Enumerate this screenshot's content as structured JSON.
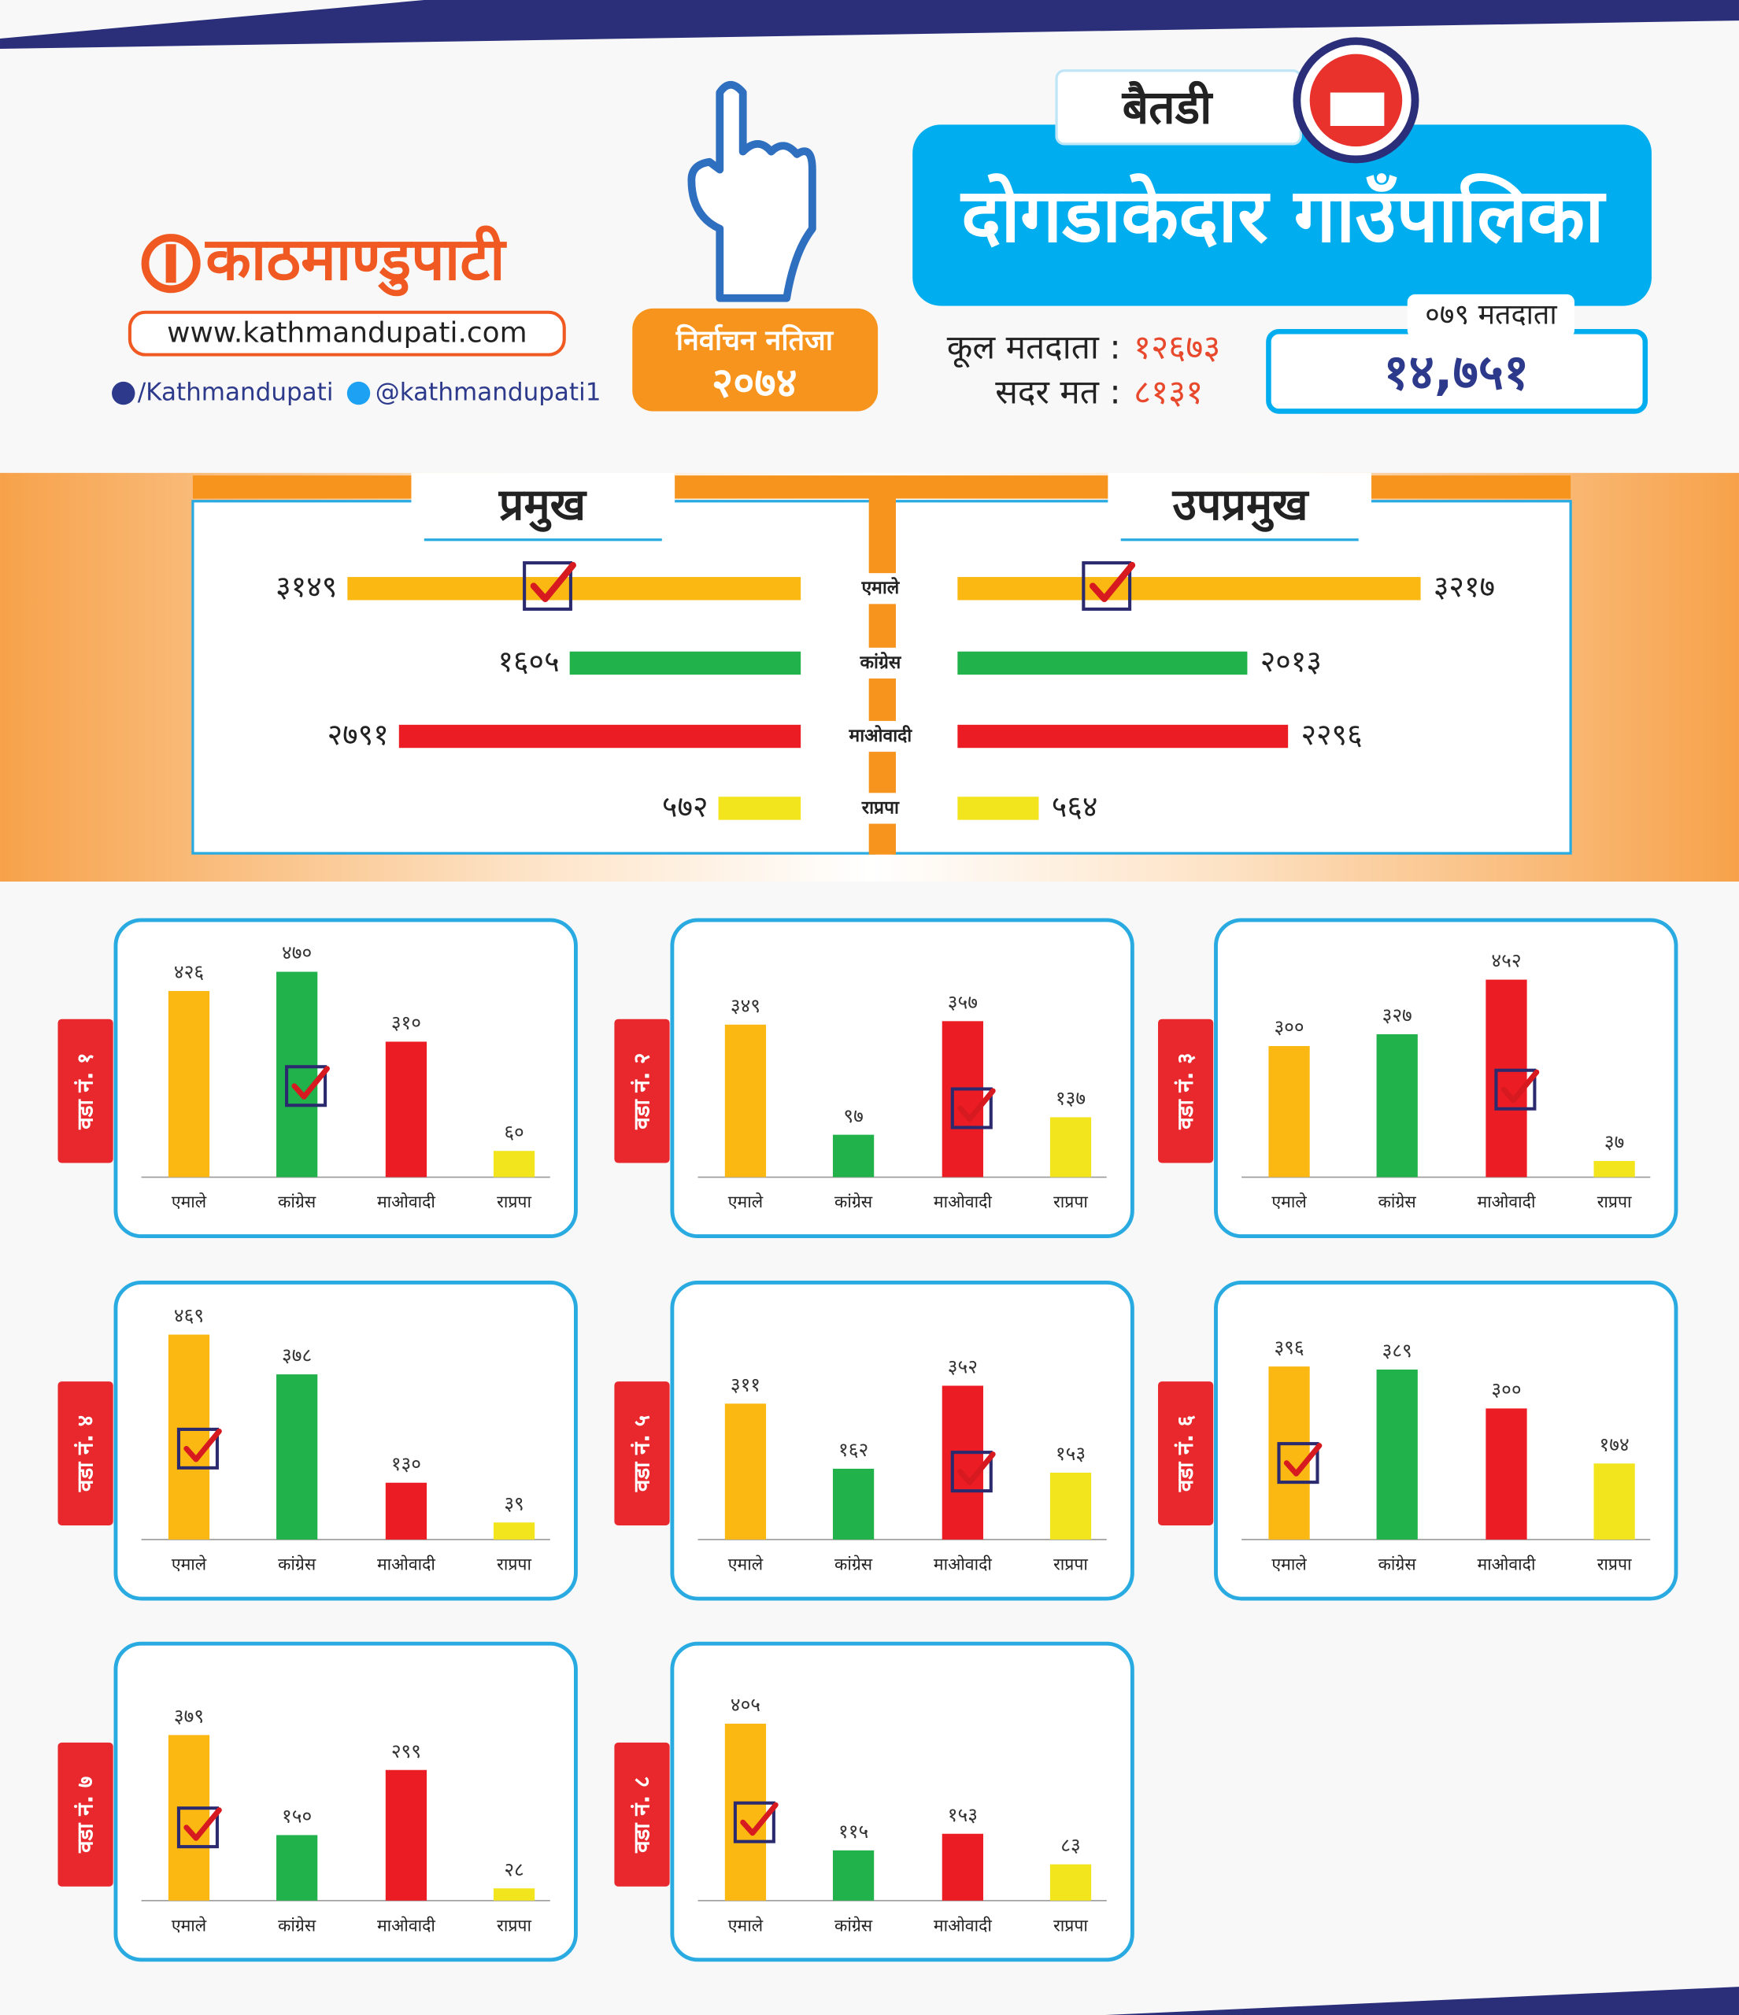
{
  "header": {
    "logo": "काठमाण्डुपाटी",
    "website": "www.kathmandupati.com",
    "facebook": "/Kathmandupati",
    "twitter": "@kathmandupati1",
    "badge_title": "निर्वाचन नतिजा",
    "badge_year": "२०७४",
    "district": "बैतडी",
    "municipality": "दोगडाकेदार गाउँपालिका",
    "stats": [
      {
        "label": "कूल मतदाता :",
        "value": "१२६७३"
      },
      {
        "label": "सदर मत :",
        "value": "८१३१"
      }
    ],
    "voters_label": "०७९ मतदाता",
    "voters": "१४,७५१"
  },
  "chart_data": [
    {
      "type": "barh",
      "categories": [
        "एमाले",
        "कांग्रेस",
        "माओवादी",
        "राप्रपा"
      ],
      "colors": [
        "#fbb813",
        "#21b24b",
        "#ec1c24",
        "#f2e41d"
      ],
      "series": [
        {
          "name": "प्रमुख",
          "values": [
            3149,
            1605,
            2791,
            572
          ],
          "value_labels": [
            "३१४९",
            "१६०५",
            "२७९१",
            "५७२"
          ],
          "check": 0
        },
        {
          "name": "उपप्रमुख",
          "values": [
            3217,
            2013,
            2296,
            564
          ],
          "value_labels": [
            "३२१७",
            "२०१३",
            "२२९६",
            "५६४"
          ],
          "check": 0
        }
      ]
    },
    {
      "type": "bar",
      "title": "वडा नं. १",
      "categories": [
        "एमाले",
        "कांग्रेस",
        "माओवादी",
        "राप्रपा"
      ],
      "colors": [
        "#fbb813",
        "#21b24b",
        "#ec1c24",
        "#f2e41d"
      ],
      "values": [
        426,
        470,
        310,
        60
      ],
      "value_labels": [
        "४२६",
        "४७०",
        "३१०",
        "६०"
      ],
      "check": 1
    },
    {
      "type": "bar",
      "title": "वडा नं. २",
      "categories": [
        "एमाले",
        "कांग्रेस",
        "माओवादी",
        "राप्रपा"
      ],
      "colors": [
        "#fbb813",
        "#21b24b",
        "#ec1c24",
        "#f2e41d"
      ],
      "values": [
        349,
        97,
        357,
        137
      ],
      "value_labels": [
        "३४९",
        "९७",
        "३५७",
        "१३७"
      ],
      "check": 2
    },
    {
      "type": "bar",
      "title": "वडा नं. ३",
      "categories": [
        "एमाले",
        "कांग्रेस",
        "माओवादी",
        "राप्रपा"
      ],
      "colors": [
        "#fbb813",
        "#21b24b",
        "#ec1c24",
        "#f2e41d"
      ],
      "values": [
        300,
        327,
        452,
        37
      ],
      "value_labels": [
        "३००",
        "३२७",
        "४५२",
        "३७"
      ],
      "check": 2
    },
    {
      "type": "bar",
      "title": "वडा नं. ४",
      "categories": [
        "एमाले",
        "कांग्रेस",
        "माओवादी",
        "राप्रपा"
      ],
      "colors": [
        "#fbb813",
        "#21b24b",
        "#ec1c24",
        "#f2e41d"
      ],
      "values": [
        469,
        378,
        130,
        39
      ],
      "value_labels": [
        "४६९",
        "३७८",
        "१३०",
        "३९"
      ],
      "check": 0
    },
    {
      "type": "bar",
      "title": "वडा नं. ५",
      "categories": [
        "एमाले",
        "कांग्रेस",
        "माओवादी",
        "राप्रपा"
      ],
      "colors": [
        "#fbb813",
        "#21b24b",
        "#ec1c24",
        "#f2e41d"
      ],
      "values": [
        311,
        162,
        352,
        153
      ],
      "value_labels": [
        "३११",
        "१६२",
        "३५२",
        "१५३"
      ],
      "check": 2
    },
    {
      "type": "bar",
      "title": "वडा नं. ६",
      "categories": [
        "एमाले",
        "कांग्रेस",
        "माओवादी",
        "राप्रपा"
      ],
      "colors": [
        "#fbb813",
        "#21b24b",
        "#ec1c24",
        "#f2e41d"
      ],
      "values": [
        396,
        389,
        300,
        174
      ],
      "value_labels": [
        "३९६",
        "३८९",
        "३००",
        "१७४"
      ],
      "check": 0
    },
    {
      "type": "bar",
      "title": "वडा नं. ७",
      "categories": [
        "एमाले",
        "कांग्रेस",
        "माओवादी",
        "राप्रपा"
      ],
      "colors": [
        "#fbb813",
        "#21b24b",
        "#ec1c24",
        "#f2e41d"
      ],
      "values": [
        379,
        150,
        299,
        28
      ],
      "value_labels": [
        "३७९",
        "१५०",
        "२९९",
        "२८"
      ],
      "check": 0
    },
    {
      "type": "bar",
      "title": "वडा नं. ८",
      "categories": [
        "एमाले",
        "कांग्रेस",
        "माओवादी",
        "राप्रपा"
      ],
      "colors": [
        "#fbb813",
        "#21b24b",
        "#ec1c24",
        "#f2e41d"
      ],
      "values": [
        405,
        115,
        153,
        83
      ],
      "value_labels": [
        "४०५",
        "११५",
        "१५३",
        "८३"
      ],
      "check": 0
    }
  ]
}
